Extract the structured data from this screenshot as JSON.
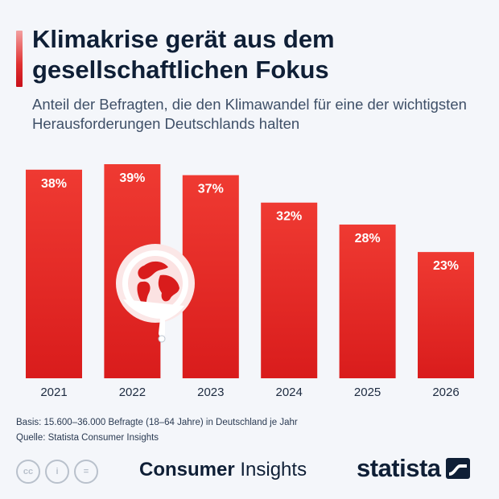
{
  "header": {
    "title": "Klimakrise gerät aus dem gesellschaftlichen Fokus",
    "subtitle": "Anteil der Befragten, die den Klimawandel für eine der wichtigsten Herausforderungen Deutschlands halten"
  },
  "chart_data": {
    "type": "bar",
    "categories": [
      "2021",
      "2022",
      "2023",
      "2024",
      "2025",
      "2026"
    ],
    "values": [
      38,
      39,
      37,
      32,
      28,
      23
    ],
    "value_labels": [
      "38%",
      "39%",
      "37%",
      "32%",
      "28%",
      "23%"
    ],
    "unit": "%",
    "ylim": [
      0,
      39
    ],
    "grid": false,
    "legend": "none",
    "bar_color": "#d91c1c",
    "bar_color_top": "#ef3a32",
    "illustration": "melting-globe-icon"
  },
  "footer": {
    "basis": "Basis: 15.600–36.000 Befragte (18–64 Jahre) in Deutschland je Jahr",
    "source": "Quelle: Statista Consumer Insights",
    "license_icons": [
      "cc-icon",
      "by-icon",
      "nd-icon"
    ],
    "license_symbols": [
      "cc",
      "i",
      "="
    ],
    "brand_bold": "Consumer",
    "brand_light": "Insights",
    "statista": "statista"
  },
  "colors": {
    "accent": "#d91c1c",
    "title": "#0f1f36",
    "background": "#f4f6fa"
  }
}
